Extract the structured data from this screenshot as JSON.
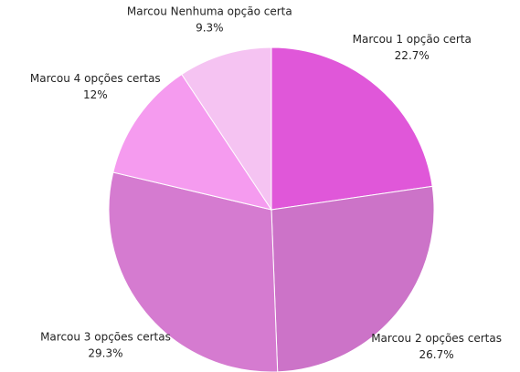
{
  "chart_data": {
    "type": "pie",
    "categories": [
      "Marcou 1 opção certa",
      "Marcou 2 opções certas",
      "Marcou 3 opções certas",
      "Marcou 4 opções certas",
      "Marcou Nenhuma opção certa"
    ],
    "values": [
      22.7,
      26.7,
      29.3,
      12,
      9.3
    ],
    "value_labels": [
      "22.7%",
      "26.7%",
      "29.3%",
      "12%",
      "9.3%"
    ],
    "colors": [
      "#e057d9",
      "#cc73c8",
      "#d57bd0",
      "#f59bef",
      "#f5c3f2"
    ]
  }
}
